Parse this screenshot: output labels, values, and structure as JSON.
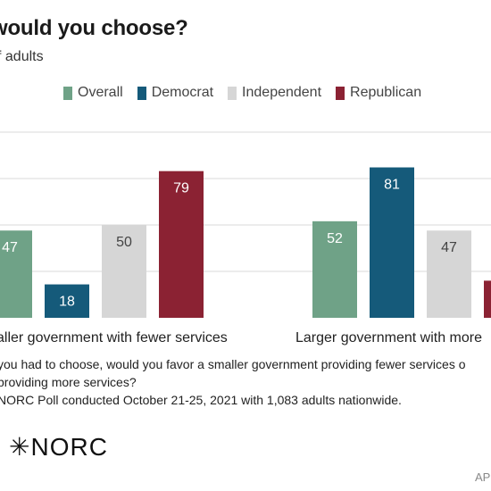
{
  "header": {
    "title": "would you choose?",
    "subtitle": "f adults"
  },
  "colors": {
    "overall": "#6fa287",
    "democrat": "#155a7a",
    "independent": "#d6d6d6",
    "republican": "#8b2233",
    "grid": "#d9d9d9"
  },
  "chart_data": {
    "type": "bar",
    "title": "would you choose?",
    "subtitle": "f adults",
    "categories": [
      "aller government with fewer services",
      "Larger government with more"
    ],
    "series": [
      {
        "name": "Overall",
        "color": "#6fa287",
        "values": [
          47,
          52
        ]
      },
      {
        "name": "Democrat",
        "color": "#155a7a",
        "values": [
          18,
          81
        ]
      },
      {
        "name": "Independent",
        "color": "#d6d6d6",
        "values": [
          50,
          47
        ]
      },
      {
        "name": "Republican",
        "color": "#8b2233",
        "values": [
          79,
          20
        ]
      }
    ],
    "ylim": [
      0,
      100
    ],
    "grid": true,
    "legend": "top"
  },
  "footnotes": {
    "line1": "you had to choose, would you favor a smaller government providing fewer services o",
    "line2": "providing more services?",
    "line3": "NORC Poll conducted October 21-25, 2021 with 1,083 adults nationwide."
  },
  "logo": "NORC",
  "credit": "AP"
}
